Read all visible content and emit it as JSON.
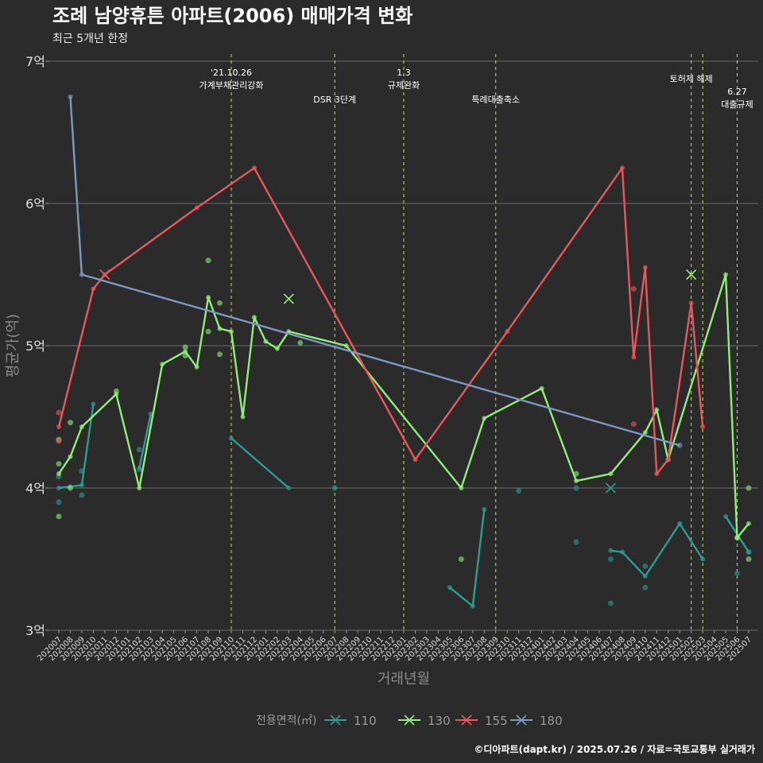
{
  "title": "조례 남양휴튼 아파트(2006) 매매가격 변화",
  "subtitle": "최근 5개년 한정",
  "caption": "©디아파트(dapt.kr) / 2025.07.26 / 자료=국토교통부 실거래가",
  "chart_data": {
    "type": "line",
    "xlabel": "거래년월",
    "ylabel": "평균가(억)",
    "ylim": [
      3,
      7
    ],
    "y_ticks": [
      {
        "value": 3,
        "label": "3억"
      },
      {
        "value": 4,
        "label": "4억"
      },
      {
        "value": 5,
        "label": "5억"
      },
      {
        "value": 6,
        "label": "6억"
      },
      {
        "value": 7,
        "label": "7억"
      }
    ],
    "categories": [
      "202007",
      "202008",
      "202009",
      "202010",
      "202011",
      "202012",
      "202101",
      "202102",
      "202103",
      "202104",
      "202105",
      "202106",
      "202107",
      "202108",
      "202109",
      "202110",
      "202111",
      "202112",
      "202201",
      "202202",
      "202203",
      "202204",
      "202205",
      "202206",
      "202207",
      "202208",
      "202209",
      "202210",
      "202211",
      "202212",
      "202301",
      "202302",
      "202303",
      "202304",
      "202305",
      "202306",
      "202307",
      "202308",
      "202309",
      "202310",
      "202311",
      "202312",
      "202401",
      "202402",
      "202403",
      "202404",
      "202405",
      "202406",
      "202407",
      "202408",
      "202409",
      "202410",
      "202411",
      "202412",
      "202501",
      "202502",
      "202503",
      "202504",
      "202505",
      "202506",
      "202507"
    ],
    "grid": true,
    "legend": {
      "title": "전용면적(㎡)",
      "position": "bottom"
    },
    "events": [
      {
        "x": "202110",
        "lines": [
          "'21.10.26",
          "가계부채관리강화"
        ]
      },
      {
        "x": "202207",
        "lines": [
          "DSR 3단계"
        ]
      },
      {
        "x": "202301",
        "lines": [
          "1.3",
          "규제완화"
        ]
      },
      {
        "x": "202309",
        "lines": [
          "특례대출축소"
        ]
      },
      {
        "x": "202502",
        "lines": [
          "토허제 해제"
        ]
      },
      {
        "x": "202503",
        "lines": []
      },
      {
        "x": "202506",
        "lines": [
          "6.27",
          "대출규제"
        ]
      }
    ],
    "series": [
      {
        "name": "110",
        "color": "#2a9d8f",
        "segments": [
          [
            [
              "202007",
              4.0
            ],
            [
              "202008",
              4.01
            ],
            [
              "202009",
              4.02
            ],
            [
              "202010",
              4.59
            ]
          ],
          [
            [
              "202102",
              4.14
            ],
            [
              "202103",
              4.52
            ]
          ],
          [
            [
              "202110",
              4.35
            ],
            [
              "202203",
              4.0
            ]
          ],
          [
            [
              "202305",
              3.3
            ],
            [
              "202307",
              3.17
            ],
            [
              "202308",
              3.85
            ]
          ],
          [
            [
              "202407",
              3.56
            ],
            [
              "202408",
              3.55
            ],
            [
              "202410",
              3.38
            ],
            [
              "202501",
              3.75
            ],
            [
              "202503",
              3.5
            ]
          ],
          [
            [
              "202505",
              3.8
            ],
            [
              "202507",
              3.55
            ]
          ]
        ],
        "points": [
          [
            "202007",
            4.08
          ],
          [
            "202007",
            3.9
          ],
          [
            "202009",
            3.95
          ],
          [
            "202009",
            4.12
          ],
          [
            "202102",
            4.27
          ],
          [
            "202102",
            4.13
          ],
          [
            "202207",
            4.0
          ],
          [
            "202311",
            3.98
          ],
          [
            "202404",
            3.62
          ],
          [
            "202404",
            4.0
          ],
          [
            "202407",
            3.5
          ],
          [
            "202407",
            3.19
          ],
          [
            "202410",
            3.3
          ],
          [
            "202410",
            3.45
          ],
          [
            "202506",
            3.4
          ],
          [
            "202507",
            3.55
          ]
        ],
        "crosses": [
          [
            "202407",
            4.0
          ]
        ]
      },
      {
        "name": "130",
        "color": "#90ee78",
        "segments": [
          [
            [
              "202007",
              4.1
            ],
            [
              "202008",
              4.22
            ],
            [
              "202009",
              4.43
            ],
            [
              "202012",
              4.66
            ],
            [
              "202102",
              4.0
            ],
            [
              "202104",
              4.87
            ],
            [
              "202106",
              4.96
            ],
            [
              "202107",
              4.85
            ],
            [
              "202108",
              5.34
            ],
            [
              "202109",
              5.12
            ],
            [
              "202110",
              5.1
            ],
            [
              "202111",
              4.5
            ],
            [
              "202112",
              5.2
            ],
            [
              "202201",
              5.03
            ],
            [
              "202202",
              4.98
            ],
            [
              "202203",
              5.1
            ],
            [
              "202208",
              5.0
            ],
            [
              "202306",
              4.0
            ],
            [
              "202308",
              4.49
            ],
            [
              "202401",
              4.7
            ],
            [
              "202404",
              4.05
            ],
            [
              "202407",
              4.1
            ],
            [
              "202410",
              4.39
            ],
            [
              "202411",
              4.55
            ],
            [
              "202412",
              4.2
            ],
            [
              "202505",
              5.5
            ],
            [
              "202506",
              3.65
            ],
            [
              "202507",
              3.75
            ]
          ]
        ],
        "points": [
          [
            "202007",
            4.34
          ],
          [
            "202007",
            4.17
          ],
          [
            "202007",
            3.8
          ],
          [
            "202008",
            4.46
          ],
          [
            "202008",
            4.0
          ],
          [
            "202012",
            4.68
          ],
          [
            "202106",
            4.93
          ],
          [
            "202106",
            4.99
          ],
          [
            "202108",
            5.6
          ],
          [
            "202108",
            5.1
          ],
          [
            "202109",
            5.3
          ],
          [
            "202109",
            4.94
          ],
          [
            "202204",
            5.02
          ],
          [
            "202306",
            3.5
          ],
          [
            "202404",
            4.1
          ],
          [
            "202506",
            3.65
          ],
          [
            "202507",
            3.5
          ],
          [
            "202507",
            4.0
          ]
        ],
        "crosses": [
          [
            "202203",
            5.33
          ],
          [
            "202502",
            5.5
          ]
        ]
      },
      {
        "name": "155",
        "color": "#e8575a",
        "segments": [
          [
            [
              "202007",
              4.43
            ],
            [
              "202010",
              5.4
            ],
            [
              "202011",
              5.5
            ],
            [
              "202107",
              5.97
            ],
            [
              "202112",
              6.25
            ],
            [
              "202302",
              4.2
            ],
            [
              "202310",
              5.1
            ],
            [
              "202408",
              6.25
            ],
            [
              "202409",
              4.92
            ],
            [
              "202410",
              5.55
            ],
            [
              "202411",
              4.1
            ],
            [
              "202412",
              4.2
            ],
            [
              "202502",
              5.3
            ],
            [
              "202503",
              4.43
            ]
          ]
        ],
        "points": [
          [
            "202007",
            4.53
          ],
          [
            "202007",
            4.33
          ],
          [
            "202409",
            5.4
          ],
          [
            "202409",
            4.45
          ]
        ],
        "crosses": [
          [
            "202011",
            5.5
          ]
        ]
      },
      {
        "name": "180",
        "color": "#7b98c2",
        "segments": [
          [
            [
              "202008",
              6.75
            ],
            [
              "202009",
              5.5
            ]
          ]
        ],
        "trend": [
          [
            "202009",
            5.5
          ],
          [
            "202501",
            4.3
          ]
        ],
        "points": [
          [
            "202501",
            4.3
          ]
        ],
        "crosses": []
      }
    ]
  }
}
